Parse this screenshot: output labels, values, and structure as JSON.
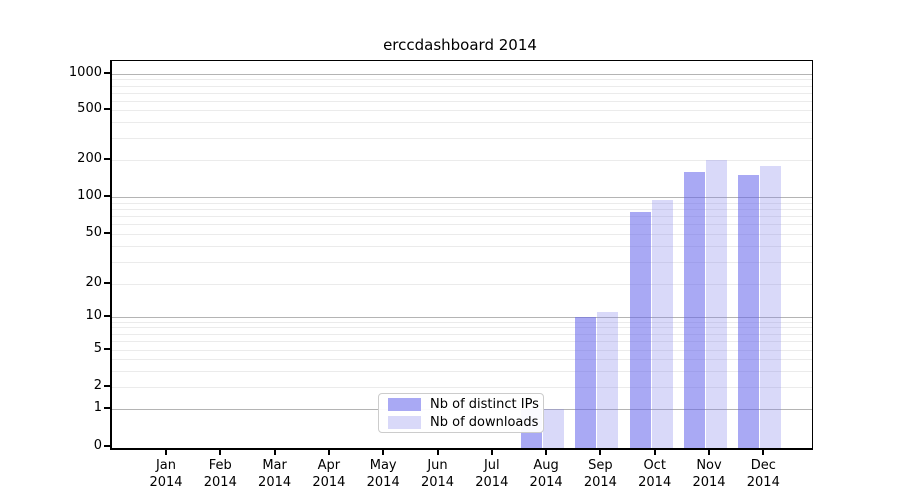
{
  "title": "erccdashboard 2014",
  "chart_data": {
    "type": "bar",
    "title": "erccdashboard 2014",
    "categories": [
      "Jan",
      "Feb",
      "Mar",
      "Apr",
      "May",
      "Jun",
      "Jul",
      "Aug",
      "Sep",
      "Oct",
      "Nov",
      "Dec"
    ],
    "year_label": "2014",
    "series": [
      {
        "name": "Nb of distinct IPs",
        "color": "#a9a9f4",
        "fill": "rgba(99,99,235,0.55)",
        "values": [
          0,
          0,
          0,
          0,
          0,
          0,
          0,
          1,
          10,
          75,
          160,
          150
        ]
      },
      {
        "name": "Nb of downloads",
        "color": "#d9d9f9",
        "fill": "rgba(128,128,235,0.30)",
        "values": [
          0,
          0,
          0,
          0,
          0,
          0,
          0,
          1,
          11,
          95,
          200,
          180
        ]
      }
    ],
    "xlabel": "",
    "ylabel": "",
    "y_axis": {
      "scale": "log-with-zero",
      "ticks": [
        0,
        1,
        2,
        5,
        10,
        20,
        50,
        100,
        200,
        500,
        1000
      ],
      "ylim": [
        0,
        1000
      ]
    },
    "grid": true,
    "legend_position": "bottom-center",
    "legend_labels": [
      "Nb of distinct IPs",
      "Nb of downloads"
    ]
  },
  "colors": {
    "major_gridline": "#b4b4b4",
    "minor_gridline": "#ebebeb",
    "axis": "#000000",
    "background": "#ffffff"
  }
}
